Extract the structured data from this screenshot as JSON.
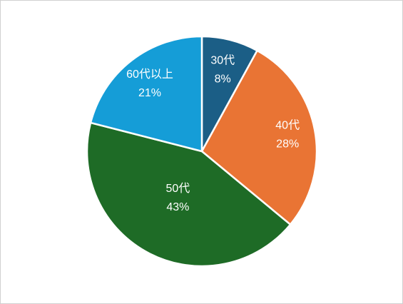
{
  "chart_data": {
    "type": "pie",
    "categories": [
      "30代",
      "40代",
      "50代",
      "60代以上"
    ],
    "values": [
      8,
      28,
      43,
      21
    ],
    "value_labels": [
      "8%",
      "28%",
      "43%",
      "21%"
    ],
    "colors": [
      "#1b5e86",
      "#e97434",
      "#1e6b26",
      "#159dd7"
    ]
  }
}
